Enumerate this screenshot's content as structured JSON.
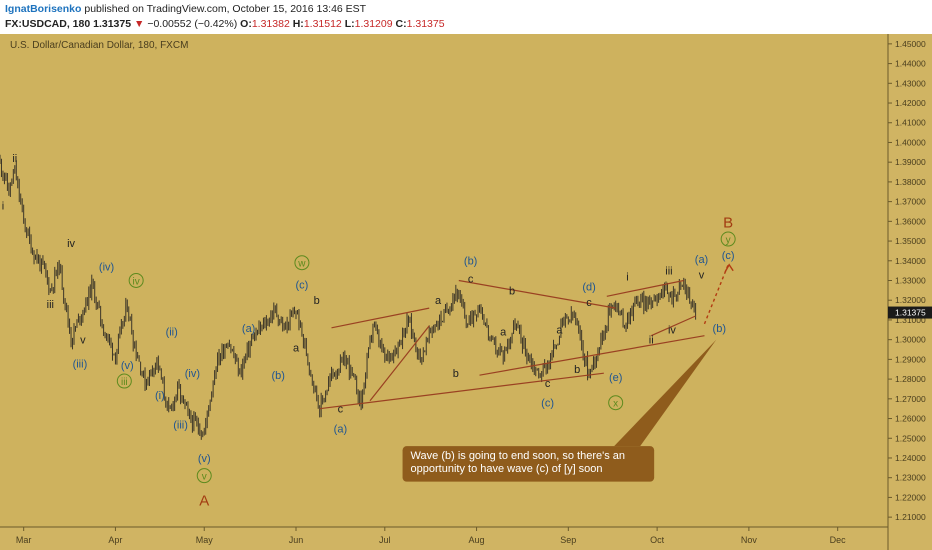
{
  "header": {
    "author": "IgnatBorisenko",
    "published_text": " published on TradingView.com, October 15, 2016 13:46 EST",
    "symbol": "FX:USDCAD, 180",
    "last": "1.31375",
    "change_arrow": "▼",
    "change": "−0.00552 (−0.42%)",
    "o_label": "O:",
    "o": "1.31382",
    "h_label": "H:",
    "h": "1.31512",
    "l_label": "L:",
    "l": "1.31209",
    "c_label": "C:",
    "c": "1.31375"
  },
  "colors": {
    "background": "#ceb25e",
    "axis_bg": "#d0b463",
    "grid": "#b99e52",
    "candle": "#3b3528",
    "trend": "#9a4122",
    "wave_blue": "#1f5592",
    "wave_green": "#5d8a1e",
    "wave_black": "#222222",
    "wave_red": "#a23c12",
    "callout": "#8f5c1c",
    "projection": "#b23b12",
    "price_label": "#1a1a1a"
  },
  "chart_data": {
    "type": "candlestick",
    "title": "U.S. Dollar/Canadian Dollar, 180, FXCM",
    "x_axis": {
      "type": "date",
      "range": [
        "2016-02-22",
        "2016-12-18"
      ],
      "ticks": [
        "Mar",
        "Apr",
        "May",
        "Jun",
        "Jul",
        "Aug",
        "Sep",
        "Oct",
        "Nov",
        "Dec"
      ]
    },
    "y_axis": {
      "range": [
        1.205,
        1.455
      ],
      "ticks": [
        "1.45000",
        "1.44000",
        "1.43000",
        "1.42000",
        "1.41000",
        "1.40000",
        "1.39000",
        "1.38000",
        "1.37000",
        "1.36000",
        "1.35000",
        "1.34000",
        "1.33000",
        "1.32000",
        "1.31000",
        "1.30000",
        "1.29000",
        "1.28000",
        "1.27000",
        "1.26000",
        "1.25000",
        "1.24000",
        "1.23000",
        "1.22000",
        "1.21000"
      ]
    },
    "last_price": "1.31375",
    "price_path": [
      [
        "2016-02-22",
        1.39
      ],
      [
        "2016-02-25",
        1.375
      ],
      [
        "2016-02-27",
        1.386
      ],
      [
        "2016-03-01",
        1.36
      ],
      [
        "2016-03-04",
        1.345
      ],
      [
        "2016-03-08",
        1.335
      ],
      [
        "2016-03-10",
        1.325
      ],
      [
        "2016-03-13",
        1.338
      ],
      [
        "2016-03-17",
        1.3
      ],
      [
        "2016-03-20",
        1.312
      ],
      [
        "2016-03-22",
        1.318
      ],
      [
        "2016-03-24",
        1.328
      ],
      [
        "2016-03-28",
        1.305
      ],
      [
        "2016-04-01",
        1.292
      ],
      [
        "2016-04-05",
        1.318
      ],
      [
        "2016-04-07",
        1.3
      ],
      [
        "2016-04-11",
        1.278
      ],
      [
        "2016-04-15",
        1.29
      ],
      [
        "2016-04-19",
        1.262
      ],
      [
        "2016-04-22",
        1.275
      ],
      [
        "2016-04-26",
        1.26
      ],
      [
        "2016-05-01",
        1.253
      ],
      [
        "2016-05-05",
        1.288
      ],
      [
        "2016-05-09",
        1.3
      ],
      [
        "2016-05-13",
        1.283
      ],
      [
        "2016-05-17",
        1.3
      ],
      [
        "2016-05-21",
        1.307
      ],
      [
        "2016-05-25",
        1.315
      ],
      [
        "2016-05-28",
        1.305
      ],
      [
        "2016-06-01",
        1.315
      ],
      [
        "2016-06-05",
        1.29
      ],
      [
        "2016-06-09",
        1.265
      ],
      [
        "2016-06-13",
        1.282
      ],
      [
        "2016-06-18",
        1.29
      ],
      [
        "2016-06-23",
        1.268
      ],
      [
        "2016-06-27",
        1.308
      ],
      [
        "2016-07-01",
        1.29
      ],
      [
        "2016-07-05",
        1.296
      ],
      [
        "2016-07-09",
        1.31
      ],
      [
        "2016-07-13",
        1.29
      ],
      [
        "2016-07-17",
        1.306
      ],
      [
        "2016-07-21",
        1.312
      ],
      [
        "2016-07-25",
        1.325
      ],
      [
        "2016-07-29",
        1.308
      ],
      [
        "2016-08-02",
        1.318
      ],
      [
        "2016-08-06",
        1.298
      ],
      [
        "2016-08-10",
        1.292
      ],
      [
        "2016-08-14",
        1.308
      ],
      [
        "2016-08-18",
        1.293
      ],
      [
        "2016-08-22",
        1.282
      ],
      [
        "2016-08-26",
        1.29
      ],
      [
        "2016-08-30",
        1.308
      ],
      [
        "2016-09-03",
        1.312
      ],
      [
        "2016-09-08",
        1.282
      ],
      [
        "2016-09-12",
        1.3
      ],
      [
        "2016-09-16",
        1.32
      ],
      [
        "2016-09-20",
        1.308
      ],
      [
        "2016-09-24",
        1.32
      ],
      [
        "2016-09-28",
        1.318
      ],
      [
        "2016-10-02",
        1.325
      ],
      [
        "2016-10-06",
        1.322
      ],
      [
        "2016-10-10",
        1.328
      ],
      [
        "2016-10-14",
        1.3138
      ]
    ],
    "trendlines": [
      {
        "from": [
          "2016-06-09",
          1.265
        ],
        "to": [
          "2016-09-13",
          1.283
        ]
      },
      {
        "from": [
          "2016-07-26",
          1.33
        ],
        "to": [
          "2016-09-17",
          1.316
        ]
      },
      {
        "from": [
          "2016-06-26",
          1.269
        ],
        "to": [
          "2016-07-16",
          1.307
        ]
      },
      {
        "from": [
          "2016-06-13",
          1.306
        ],
        "to": [
          "2016-07-16",
          1.316
        ]
      },
      {
        "from": [
          "2016-09-14",
          1.322
        ],
        "to": [
          "2016-10-10",
          1.33
        ]
      },
      {
        "from": [
          "2016-09-29",
          1.302
        ],
        "to": [
          "2016-10-14",
          1.312
        ]
      },
      {
        "from": [
          "2016-08-02",
          1.282
        ],
        "to": [
          "2016-10-17",
          1.302
        ]
      }
    ],
    "projection": [
      [
        "2016-10-17",
        1.308
      ],
      [
        "2016-10-25",
        1.338
      ]
    ],
    "annotations": [
      {
        "text": "ii",
        "d": "2016-02-27",
        "y": 1.39,
        "style": "black"
      },
      {
        "text": "i",
        "d": "2016-02-23",
        "y": 1.366,
        "style": "black"
      },
      {
        "text": "iv",
        "d": "2016-03-17",
        "y": 1.347,
        "style": "black"
      },
      {
        "text": "iii",
        "d": "2016-03-10",
        "y": 1.316,
        "style": "black"
      },
      {
        "text": "v",
        "d": "2016-03-21",
        "y": 1.298,
        "style": "black"
      },
      {
        "text": "(iii)",
        "d": "2016-03-20",
        "y": 1.286,
        "style": "blue"
      },
      {
        "text": "(iv)",
        "d": "2016-03-29",
        "y": 1.335,
        "style": "blue"
      },
      {
        "text": "iv",
        "d": "2016-04-08",
        "y": 1.328,
        "style": "green-circle"
      },
      {
        "text": "(v)",
        "d": "2016-04-05",
        "y": 1.285,
        "style": "blue"
      },
      {
        "text": "iii",
        "d": "2016-04-04",
        "y": 1.277,
        "style": "green-circle"
      },
      {
        "text": "(i)",
        "d": "2016-04-16",
        "y": 1.27,
        "style": "blue"
      },
      {
        "text": "(ii)",
        "d": "2016-04-20",
        "y": 1.302,
        "style": "blue"
      },
      {
        "text": "(iv)",
        "d": "2016-04-27",
        "y": 1.281,
        "style": "blue"
      },
      {
        "text": "(iii)",
        "d": "2016-04-23",
        "y": 1.255,
        "style": "blue"
      },
      {
        "text": "(v)",
        "d": "2016-05-01",
        "y": 1.238,
        "style": "blue"
      },
      {
        "text": "v",
        "d": "2016-05-01",
        "y": 1.229,
        "style": "green-circle"
      },
      {
        "text": "A",
        "d": "2016-05-01",
        "y": 1.216,
        "style": "red"
      },
      {
        "text": "(a)",
        "d": "2016-05-16",
        "y": 1.304,
        "style": "blue"
      },
      {
        "text": "(b)",
        "d": "2016-05-26",
        "y": 1.28,
        "style": "blue"
      },
      {
        "text": "w",
        "d": "2016-06-03",
        "y": 1.337,
        "style": "green-circle"
      },
      {
        "text": "(c)",
        "d": "2016-06-03",
        "y": 1.326,
        "style": "blue"
      },
      {
        "text": "b",
        "d": "2016-06-08",
        "y": 1.318,
        "style": "black"
      },
      {
        "text": "a",
        "d": "2016-06-01",
        "y": 1.294,
        "style": "black"
      },
      {
        "text": "c",
        "d": "2016-06-16",
        "y": 1.263,
        "style": "black"
      },
      {
        "text": "(a)",
        "d": "2016-06-16",
        "y": 1.253,
        "style": "blue"
      },
      {
        "text": "a",
        "d": "2016-07-19",
        "y": 1.318,
        "style": "black"
      },
      {
        "text": "b",
        "d": "2016-07-25",
        "y": 1.281,
        "style": "black"
      },
      {
        "text": "(b)",
        "d": "2016-07-30",
        "y": 1.338,
        "style": "blue"
      },
      {
        "text": "c",
        "d": "2016-07-30",
        "y": 1.329,
        "style": "black"
      },
      {
        "text": "b",
        "d": "2016-08-13",
        "y": 1.323,
        "style": "black"
      },
      {
        "text": "a",
        "d": "2016-08-10",
        "y": 1.302,
        "style": "black"
      },
      {
        "text": "a",
        "d": "2016-08-29",
        "y": 1.303,
        "style": "black"
      },
      {
        "text": "c",
        "d": "2016-08-25",
        "y": 1.276,
        "style": "black"
      },
      {
        "text": "(c)",
        "d": "2016-08-25",
        "y": 1.266,
        "style": "blue"
      },
      {
        "text": "b",
        "d": "2016-09-04",
        "y": 1.283,
        "style": "black"
      },
      {
        "text": "(d)",
        "d": "2016-09-08",
        "y": 1.325,
        "style": "blue"
      },
      {
        "text": "c",
        "d": "2016-09-08",
        "y": 1.317,
        "style": "black"
      },
      {
        "text": "(e)",
        "d": "2016-09-17",
        "y": 1.279,
        "style": "blue"
      },
      {
        "text": "x",
        "d": "2016-09-17",
        "y": 1.266,
        "style": "green-circle"
      },
      {
        "text": "i",
        "d": "2016-09-21",
        "y": 1.33,
        "style": "black"
      },
      {
        "text": "iii",
        "d": "2016-10-05",
        "y": 1.333,
        "style": "black"
      },
      {
        "text": "(a)",
        "d": "2016-10-16",
        "y": 1.339,
        "style": "blue"
      },
      {
        "text": "v",
        "d": "2016-10-16",
        "y": 1.331,
        "style": "black"
      },
      {
        "text": "ii",
        "d": "2016-09-29",
        "y": 1.298,
        "style": "black"
      },
      {
        "text": "iv",
        "d": "2016-10-06",
        "y": 1.303,
        "style": "black"
      },
      {
        "text": "(b)",
        "d": "2016-10-22",
        "y": 1.304,
        "style": "blue"
      },
      {
        "text": "B",
        "d": "2016-10-25",
        "y": 1.357,
        "style": "red-large"
      },
      {
        "text": "y",
        "d": "2016-10-25",
        "y": 1.349,
        "style": "green-circle"
      },
      {
        "text": "(c)",
        "d": "2016-10-25",
        "y": 1.341,
        "style": "blue"
      }
    ],
    "callout": {
      "text_lines": [
        "Wave (b) is going to end soon, so there's an",
        "opportunity to have wave (c) of [y] soon"
      ],
      "anchor": [
        "2016-10-21",
        1.3
      ],
      "box_from": [
        "2016-07-07",
        1.246
      ],
      "box_to": [
        "2016-09-30",
        1.228
      ]
    }
  }
}
